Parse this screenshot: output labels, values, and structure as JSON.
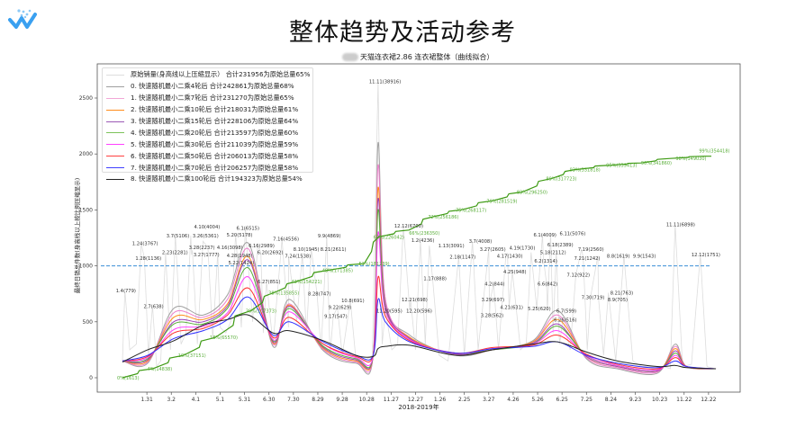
{
  "page": {
    "title": "整体趋势及活动参考",
    "subtitle": "天猫连衣裙2.86 连衣裙整体（曲线拟合）",
    "logo_icon": "brand-w-logo",
    "redaction_color": "#cccccc"
  },
  "legend": [
    {
      "label": "原始销量(身高线以上压缩显示） 合计231956为原始总量65%",
      "color": "#dddddd"
    },
    {
      "label": "0. 快速随机最小二乘4轮后  合计242861为原始总量68%",
      "color": "#a0a0a0"
    },
    {
      "label": "1. 快速随机最小二乘7轮后  合计231270为原始总量65%",
      "color": "#f2a6d6"
    },
    {
      "label": "2. 快速随机最小二乘10轮后  合计218031为原始总量61%",
      "color": "#ff8c1a"
    },
    {
      "label": "3. 快速随机最小二乘15轮后  合计228106为原始总量64%",
      "color": "#9b59b6"
    },
    {
      "label": "4. 快速随机最小二乘20轮后  合计213597为原始总量60%",
      "color": "#7cc35a"
    },
    {
      "label": "5. 快速随机最小二乘30轮后  合计211039为原始总量59%",
      "color": "#ff40ff"
    },
    {
      "label": "6. 快速随机最小二乘50轮后  合计206013为原始总量58%",
      "color": "#ff4040"
    },
    {
      "label": "7. 快速随机最小二乘70轮后  合计206257为原始总量58%",
      "color": "#4040ff"
    },
    {
      "label": "8. 快速随机最小二乘100轮后  合计194323为原始总量54%",
      "color": "#222222"
    }
  ],
  "chart_data": {
    "type": "line",
    "title": "天猫连衣裙2.86 连衣裙整体（曲线拟合）",
    "xlabel": "2018-2019年",
    "ylabel": "最终日销总件数(身高线以上按比例压缩显示)",
    "ylim": [
      -80,
      2800
    ],
    "yticks": [
      0,
      500,
      1000,
      1500,
      2000,
      2500
    ],
    "xticks": [
      "1.31",
      "3.2",
      "4.1",
      "5.1",
      "5.31",
      "6.30",
      "7.30",
      "8.29",
      "9.28",
      "10.28",
      "11.27",
      "12.27",
      "1.26",
      "2.25",
      "3.27",
      "4.26",
      "5.26",
      "6.25",
      "7.25",
      "8.24",
      "9.23",
      "10.23",
      "11.22",
      "12.22"
    ],
    "xtick_dates": [
      "2018-01-31",
      "2018-03-02",
      "2018-04-01",
      "2018-05-01",
      "2018-05-31",
      "2018-06-30",
      "2018-07-30",
      "2018-08-29",
      "2018-09-28",
      "2018-10-28",
      "2018-11-27",
      "2018-12-27",
      "2019-01-26",
      "2019-02-25",
      "2019-03-27",
      "2019-04-26",
      "2019-05-26",
      "2019-06-25",
      "2019-07-25",
      "2019-08-24",
      "2019-09-23",
      "2019-10-23",
      "2019-11-22",
      "2019-12-22"
    ],
    "reference_line": {
      "y": 1000,
      "style": "dashed",
      "color": "#3a8fd6"
    },
    "grid": false,
    "legend_position": "top-left",
    "raw_baseline": [
      [
        "2018-01-01",
        150
      ],
      [
        "2018-01-10",
        250
      ],
      [
        "2018-01-18",
        300
      ],
      [
        "2018-02-02",
        200
      ],
      [
        "2018-02-12",
        100
      ],
      [
        "2018-02-17",
        150
      ],
      [
        "2018-03-01",
        250
      ],
      [
        "2018-03-14",
        300
      ],
      [
        "2018-03-20",
        400
      ],
      [
        "2018-04-03",
        300
      ],
      [
        "2018-04-22",
        350
      ],
      [
        "2018-05-01",
        450
      ],
      [
        "2018-05-08",
        400
      ],
      [
        "2018-05-14",
        500
      ],
      [
        "2018-05-27",
        450
      ],
      [
        "2018-06-10",
        500
      ],
      [
        "2018-06-23",
        400
      ],
      [
        "2018-07-05",
        300
      ],
      [
        "2018-07-24",
        450
      ],
      [
        "2018-08-03",
        500
      ],
      [
        "2018-08-15",
        400
      ],
      [
        "2018-09-02",
        250
      ],
      [
        "2018-09-13",
        200
      ],
      [
        "2018-09-28",
        200
      ],
      [
        "2018-10-15",
        150
      ],
      [
        "2018-10-25",
        150
      ],
      [
        "2018-11-04",
        200
      ],
      [
        "2018-11-16",
        300
      ],
      [
        "2018-11-28",
        250
      ],
      [
        "2018-12-05",
        300
      ],
      [
        "2018-12-27",
        250
      ],
      [
        "2019-01-08",
        300
      ],
      [
        "2019-01-25",
        200
      ],
      [
        "2019-02-05",
        150
      ],
      [
        "2019-02-25",
        200
      ],
      [
        "2019-03-14",
        250
      ],
      [
        "2019-04-08",
        250
      ],
      [
        "2019-05-05",
        250
      ],
      [
        "2019-05-12",
        300
      ],
      [
        "2019-06-14",
        400
      ],
      [
        "2019-06-22",
        300
      ],
      [
        "2019-07-05",
        250
      ],
      [
        "2019-07-26",
        250
      ],
      [
        "2019-08-15",
        200
      ],
      [
        "2019-08-30",
        150
      ],
      [
        "2019-09-20",
        150
      ],
      [
        "2019-10-01",
        100
      ],
      [
        "2019-10-15",
        100
      ],
      [
        "2019-10-28",
        100
      ],
      [
        "2019-11-05",
        80
      ],
      [
        "2019-11-20",
        100
      ],
      [
        "2019-12-01",
        120
      ],
      [
        "2019-12-20",
        100
      ],
      [
        "2019-12-31",
        80
      ]
    ],
    "annotations": [
      {
        "text": "1.4(779)",
        "date": "2018-01-04",
        "y": 780
      },
      {
        "text": "1.24(3767)",
        "date": "2018-01-24",
        "y": 1200
      },
      {
        "text": "1.28(1136)",
        "date": "2018-01-28",
        "y": 1070
      },
      {
        "text": "2.7(638)",
        "date": "2018-02-07",
        "y": 640
      },
      {
        "text": "2.23(2281)",
        "date": "2018-02-23",
        "y": 1120
      },
      {
        "text": "3.7(5106)",
        "date": "2018-03-07",
        "y": 1270
      },
      {
        "text": "3.26(5361)",
        "date": "2018-03-26",
        "y": 1270
      },
      {
        "text": "3.27(1777)",
        "date": "2018-03-27",
        "y": 1100
      },
      {
        "text": "3.28(2237)",
        "date": "2018-03-28",
        "y": 1140
      },
      {
        "text": "4.10(4004)",
        "date": "2018-04-10",
        "y": 1220
      },
      {
        "text": "4.16(3098)",
        "date": "2018-04-16",
        "y": 1165
      },
      {
        "text": "4.28(1948)",
        "date": "2018-04-28",
        "y": 1120
      },
      {
        "text": "5.20(5178)",
        "date": "2018-05-20",
        "y": 1280
      },
      {
        "text": "5.22(1424)",
        "date": "2018-05-22",
        "y": 1080
      },
      {
        "text": "6.1(6515)",
        "date": "2018-06-01",
        "y": 1340
      },
      {
        "text": "6.16(2989)",
        "date": "2018-06-16",
        "y": 1180
      },
      {
        "text": "6.20(2692)",
        "date": "2018-06-20",
        "y": 1120
      },
      {
        "text": "6.27(851)",
        "date": "2018-06-27",
        "y": 860
      },
      {
        "text": "7.16(4556)",
        "date": "2018-07-16",
        "y": 1240
      },
      {
        "text": "7.24(1538)",
        "date": "2018-07-24",
        "y": 1090
      },
      {
        "text": "8.10(1945)",
        "date": "2018-08-10",
        "y": 1100
      },
      {
        "text": "8.21(2611)",
        "date": "2018-08-21",
        "y": 1150
      },
      {
        "text": "8.28(747)",
        "date": "2018-08-28",
        "y": 750
      },
      {
        "text": "9.9(4869)",
        "date": "2018-09-09",
        "y": 1270
      },
      {
        "text": "9.17(547)",
        "date": "2018-09-17",
        "y": 550
      },
      {
        "text": "9.22(629)",
        "date": "2018-09-22",
        "y": 630
      },
      {
        "text": "10.8(691)",
        "date": "2018-10-08",
        "y": 690
      },
      {
        "text": "11.11(38916)",
        "date": "2018-11-11",
        "y": 2650
      },
      {
        "text": "11.20(595)",
        "date": "2018-11-20",
        "y": 600
      },
      {
        "text": "12.12(6700)",
        "date": "2018-12-12",
        "y": 1360
      },
      {
        "text": "12.20(596)",
        "date": "2018-12-20",
        "y": 600
      },
      {
        "text": "12.21(698)",
        "date": "2018-12-21",
        "y": 700
      },
      {
        "text": "1.2(4236)",
        "date": "2019-01-02",
        "y": 1230
      },
      {
        "text": "1.13(3091)",
        "date": "2019-01-13",
        "y": 1180
      },
      {
        "text": "1.17(888)",
        "date": "2019-01-17",
        "y": 890
      },
      {
        "text": "2.18(1147)",
        "date": "2019-02-18",
        "y": 1080
      },
      {
        "text": "3.7(4008)",
        "date": "2019-03-07",
        "y": 1220
      },
      {
        "text": "3.27(2605)",
        "date": "2019-03-27",
        "y": 1150
      },
      {
        "text": "3.28(562)",
        "date": "2019-03-28",
        "y": 560
      },
      {
        "text": "3.29(697)",
        "date": "2019-03-29",
        "y": 700
      },
      {
        "text": "4.2(844)",
        "date": "2019-04-02",
        "y": 840
      },
      {
        "text": "4.17(1430)",
        "date": "2019-04-17",
        "y": 1090
      },
      {
        "text": "4.19(1730)",
        "date": "2019-04-19",
        "y": 1110
      },
      {
        "text": "4.21(631)",
        "date": "2019-04-21",
        "y": 630
      },
      {
        "text": "4.25(948)",
        "date": "2019-04-25",
        "y": 950
      },
      {
        "text": "5.18(2112)",
        "date": "2019-05-18",
        "y": 1120
      },
      {
        "text": "5.25(620)",
        "date": "2019-05-25",
        "y": 620
      },
      {
        "text": "6.1(4009)",
        "date": "2019-06-01",
        "y": 1280
      },
      {
        "text": "6.2(1314)",
        "date": "2019-06-02",
        "y": 1070
      },
      {
        "text": "6.6(842)",
        "date": "2019-06-06",
        "y": 840
      },
      {
        "text": "6.7(599)",
        "date": "2019-06-07",
        "y": 600
      },
      {
        "text": "6.11(5076)",
        "date": "2019-06-11",
        "y": 1290
      },
      {
        "text": "6.18(2389)",
        "date": "2019-06-18",
        "y": 1140
      },
      {
        "text": "6.26(516)",
        "date": "2019-06-26",
        "y": 520
      },
      {
        "text": "7.12(922)",
        "date": "2019-07-12",
        "y": 920
      },
      {
        "text": "7.19(2560)",
        "date": "2019-07-19",
        "y": 1150
      },
      {
        "text": "7.21(1242)",
        "date": "2019-07-21",
        "y": 1070
      },
      {
        "text": "7.30(719)",
        "date": "2019-07-30",
        "y": 720
      },
      {
        "text": "8.8(1619)",
        "date": "2019-08-08",
        "y": 1090
      },
      {
        "text": "8.9(705)",
        "date": "2019-08-09",
        "y": 700
      },
      {
        "text": "8.21(763)",
        "date": "2019-08-21",
        "y": 760
      },
      {
        "text": "9.9(1543)",
        "date": "2019-09-09",
        "y": 1090
      },
      {
        "text": "11.11(6898)",
        "date": "2019-11-11",
        "y": 1370
      },
      {
        "text": "12.12(1751)",
        "date": "2019-12-12",
        "y": 1100
      }
    ],
    "fit_x": [
      "2018-01-01",
      "2018-02-01",
      "2018-03-05",
      "2018-04-10",
      "2018-05-10",
      "2018-06-05",
      "2018-07-05",
      "2018-07-25",
      "2018-09-05",
      "2018-10-15",
      "2018-11-05",
      "2018-11-11",
      "2018-11-20",
      "2018-12-20",
      "2019-02-15",
      "2019-04-01",
      "2019-05-20",
      "2019-06-20",
      "2019-07-25",
      "2019-09-01",
      "2019-10-20",
      "2019-11-11",
      "2019-11-25",
      "2019-12-31"
    ],
    "series": [
      {
        "name": "0. 快速随机最小二乘4轮后",
        "color": "#a0a0a0",
        "values": [
          150,
          130,
          620,
          560,
          740,
          1200,
          280,
          700,
          240,
          130,
          200,
          2100,
          700,
          380,
          200,
          250,
          330,
          600,
          170,
          80,
          40,
          300,
          100,
          80
        ]
      },
      {
        "name": "1. 快速随机最小二乘7轮后",
        "color": "#ec7fcb",
        "values": [
          150,
          140,
          580,
          540,
          700,
          1150,
          300,
          660,
          250,
          140,
          200,
          1900,
          700,
          360,
          210,
          250,
          320,
          560,
          180,
          90,
          50,
          280,
          100,
          80
        ]
      },
      {
        "name": "2. 快速随机最小二乘10轮后",
        "color": "#ff8c1a",
        "values": [
          150,
          150,
          540,
          520,
          660,
          1080,
          310,
          650,
          260,
          150,
          200,
          1700,
          650,
          360,
          210,
          250,
          320,
          520,
          190,
          100,
          60,
          260,
          100,
          80
        ]
      },
      {
        "name": "3. 快速随机最小二乘15轮后",
        "color": "#9b3fb6",
        "values": [
          150,
          160,
          500,
          500,
          640,
          1050,
          320,
          640,
          270,
          160,
          200,
          1600,
          650,
          350,
          210,
          250,
          310,
          480,
          190,
          100,
          60,
          240,
          100,
          80
        ]
      },
      {
        "name": "4. 快速随机最小二乘20轮后",
        "color": "#5aae3a",
        "values": [
          150,
          170,
          480,
          480,
          620,
          980,
          330,
          620,
          280,
          170,
          200,
          1500,
          620,
          340,
          220,
          250,
          300,
          460,
          200,
          110,
          70,
          220,
          100,
          80
        ]
      },
      {
        "name": "5. 快速随机最小二乘30轮后",
        "color": "#ff40ff",
        "values": [
          150,
          180,
          430,
          460,
          580,
          900,
          340,
          590,
          300,
          180,
          200,
          1300,
          600,
          340,
          220,
          260,
          300,
          420,
          200,
          110,
          70,
          200,
          100,
          80
        ]
      },
      {
        "name": "6. 快速随机最小二乘50轮后",
        "color": "#ff3030",
        "values": [
          150,
          190,
          400,
          440,
          560,
          800,
          360,
          540,
          300,
          190,
          200,
          900,
          550,
          330,
          220,
          270,
          290,
          380,
          210,
          120,
          80,
          180,
          100,
          80
        ]
      },
      {
        "name": "7. 快速随机最小二乘70轮后",
        "color": "#3030ff",
        "values": [
          150,
          200,
          350,
          420,
          520,
          720,
          380,
          500,
          320,
          200,
          200,
          700,
          500,
          320,
          220,
          260,
          280,
          320,
          200,
          130,
          90,
          150,
          100,
          80
        ]
      },
      {
        "name": "8. 快速随机最小二乘100轮后",
        "color": "#222222",
        "values": [
          140,
          250,
          330,
          470,
          520,
          560,
          400,
          420,
          330,
          200,
          190,
          260,
          280,
          290,
          200,
          250,
          300,
          320,
          230,
          150,
          100,
          110,
          90,
          80
        ]
      }
    ],
    "cumulative": {
      "color": "#3d9a12",
      "points": [
        {
          "date": "2018-01-01",
          "pct": 0,
          "label": "0%(1613)"
        },
        {
          "date": "2018-02-07",
          "pct": 4,
          "label": "4%(14838)"
        },
        {
          "date": "2018-03-17",
          "pct": 10,
          "label": "10%(37151)"
        },
        {
          "date": "2018-04-25",
          "pct": 18,
          "label": "18%(65570)"
        },
        {
          "date": "2018-06-08",
          "pct": 30,
          "label": "30%(107373)"
        },
        {
          "date": "2018-07-06",
          "pct": 38,
          "label": "38%(135855)"
        },
        {
          "date": "2018-08-03",
          "pct": 43,
          "label": "43%(154221)"
        },
        {
          "date": "2018-09-10",
          "pct": 48,
          "label": "48%(171385)"
        },
        {
          "date": "2018-10-25",
          "pct": 51,
          "label": "51%(181239)"
        },
        {
          "date": "2018-11-12",
          "pct": 63,
          "label": "63%(226042)"
        },
        {
          "date": "2018-12-19",
          "pct": 66,
          "label": "66%(236350)"
        },
        {
          "date": "2019-01-18",
          "pct": 72,
          "label": "72%(256186)"
        },
        {
          "date": "2019-02-21",
          "pct": 75,
          "label": "75%(268117)"
        },
        {
          "date": "2019-03-31",
          "pct": 79,
          "label": "79%(281519)"
        },
        {
          "date": "2019-05-07",
          "pct": 83,
          "label": "83%(296250)"
        },
        {
          "date": "2019-06-12",
          "pct": 89,
          "label": "89%(317723)"
        },
        {
          "date": "2019-07-11",
          "pct": 93,
          "label": "93%(331818)"
        },
        {
          "date": "2019-08-25",
          "pct": 95,
          "label": "95%(339413)"
        },
        {
          "date": "2019-09-30",
          "pct": 96,
          "label": "96%(341860)"
        },
        {
          "date": "2019-11-05",
          "pct": 98,
          "label": "98%(349030)"
        },
        {
          "date": "2019-12-17",
          "pct": 99,
          "label": "99%(354418)"
        }
      ]
    }
  }
}
